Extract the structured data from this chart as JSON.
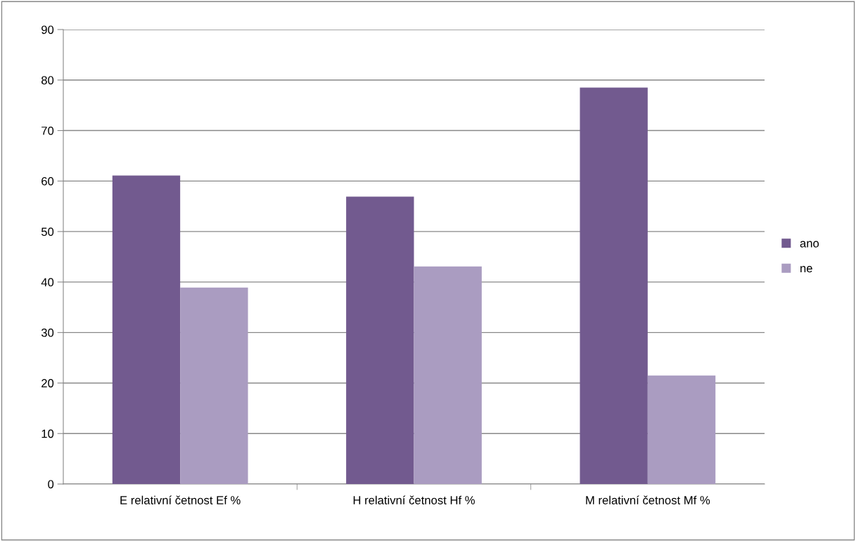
{
  "chart_data": {
    "type": "bar",
    "categories": [
      "E relativní četnost Ef %",
      "H relativní četnost Hf %",
      "M relativní četnost Mf %"
    ],
    "series": [
      {
        "name": "ano",
        "color": "#725a8f",
        "values": [
          61.1,
          56.9,
          78.5
        ]
      },
      {
        "name": "ne",
        "color": "#aa9cc1",
        "values": [
          38.9,
          43.1,
          21.5
        ]
      }
    ],
    "ylim": [
      0,
      90
    ],
    "yticks": [
      0,
      10,
      20,
      30,
      40,
      50,
      60,
      70,
      80,
      90
    ],
    "grid": "y",
    "legend": "right"
  }
}
